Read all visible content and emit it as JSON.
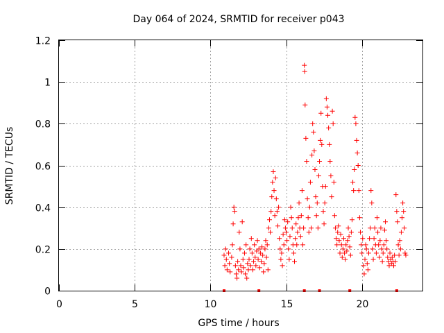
{
  "chart_data": {
    "type": "scatter",
    "title": "Day 064 of 2024, SRMTID for receiver p043",
    "xlabel": "GPS time / hours",
    "ylabel": "SRMTID / TECUs",
    "xlim": [
      0,
      24
    ],
    "ylim": [
      0,
      1.2
    ],
    "xticks": [
      0,
      5,
      10,
      15,
      20
    ],
    "xtick_labels": [
      "0",
      "5",
      "10",
      "15",
      "20"
    ],
    "yticks": [
      0,
      0.2,
      0.4,
      0.6,
      0.8,
      1,
      1.2
    ],
    "ytick_labels": [
      "0",
      "0.2",
      "0.4",
      "0.6",
      "0.8",
      "1",
      "1.2"
    ],
    "grid": true,
    "marker": "+",
    "color": "#ff0000",
    "baseline_markers_x": [
      10.9,
      13.2,
      16.2,
      17.2,
      19.2,
      22.3
    ],
    "series": [
      {
        "name": "SRMTID",
        "points": [
          [
            10.9,
            0.17
          ],
          [
            10.95,
            0.12
          ],
          [
            11.0,
            0.2
          ],
          [
            11.05,
            0.15
          ],
          [
            11.1,
            0.1
          ],
          [
            11.2,
            0.18
          ],
          [
            11.25,
            0.13
          ],
          [
            11.3,
            0.09
          ],
          [
            11.4,
            0.16
          ],
          [
            11.45,
            0.22
          ],
          [
            11.5,
            0.32
          ],
          [
            11.55,
            0.4
          ],
          [
            11.6,
            0.38
          ],
          [
            11.65,
            0.12
          ],
          [
            11.7,
            0.08
          ],
          [
            11.75,
            0.06
          ],
          [
            11.8,
            0.14
          ],
          [
            11.85,
            0.1
          ],
          [
            11.9,
            0.28
          ],
          [
            11.95,
            0.2
          ],
          [
            12.0,
            0.12
          ],
          [
            12.05,
            0.09
          ],
          [
            12.1,
            0.33
          ],
          [
            12.15,
            0.15
          ],
          [
            12.2,
            0.11
          ],
          [
            12.25,
            0.18
          ],
          [
            12.3,
            0.08
          ],
          [
            12.35,
            0.22
          ],
          [
            12.4,
            0.06
          ],
          [
            12.45,
            0.13
          ],
          [
            12.5,
            0.1
          ],
          [
            12.55,
            0.15
          ],
          [
            12.6,
            0.2
          ],
          [
            12.65,
            0.12
          ],
          [
            12.7,
            0.25
          ],
          [
            12.75,
            0.18
          ],
          [
            12.8,
            0.1
          ],
          [
            12.85,
            0.14
          ],
          [
            12.9,
            0.22
          ],
          [
            12.95,
            0.16
          ],
          [
            13.0,
            0.12
          ],
          [
            13.05,
            0.19
          ],
          [
            13.1,
            0.24
          ],
          [
            13.15,
            0.15
          ],
          [
            13.2,
            0.2
          ],
          [
            13.25,
            0.11
          ],
          [
            13.3,
            0.18
          ],
          [
            13.35,
            0.14
          ],
          [
            13.4,
            0.21
          ],
          [
            13.45,
            0.17
          ],
          [
            13.5,
            0.09
          ],
          [
            13.55,
            0.13
          ],
          [
            13.6,
            0.2
          ],
          [
            13.65,
            0.24
          ],
          [
            13.7,
            0.16
          ],
          [
            13.75,
            0.22
          ],
          [
            13.8,
            0.1
          ],
          [
            13.85,
            0.3
          ],
          [
            13.9,
            0.34
          ],
          [
            13.95,
            0.28
          ],
          [
            14.0,
            0.38
          ],
          [
            14.05,
            0.45
          ],
          [
            14.1,
            0.52
          ],
          [
            14.15,
            0.57
          ],
          [
            14.2,
            0.48
          ],
          [
            14.25,
            0.36
          ],
          [
            14.3,
            0.54
          ],
          [
            14.35,
            0.44
          ],
          [
            14.4,
            0.38
          ],
          [
            14.45,
            0.31
          ],
          [
            14.5,
            0.4
          ],
          [
            14.55,
            0.25
          ],
          [
            14.6,
            0.2
          ],
          [
            14.65,
            0.15
          ],
          [
            14.7,
            0.18
          ],
          [
            14.75,
            0.12
          ],
          [
            14.8,
            0.27
          ],
          [
            14.85,
            0.22
          ],
          [
            14.9,
            0.34
          ],
          [
            14.95,
            0.3
          ],
          [
            15.0,
            0.28
          ],
          [
            15.05,
            0.24
          ],
          [
            15.1,
            0.33
          ],
          [
            15.15,
            0.2
          ],
          [
            15.2,
            0.15
          ],
          [
            15.25,
            0.26
          ],
          [
            15.3,
            0.4
          ],
          [
            15.35,
            0.35
          ],
          [
            15.4,
            0.3
          ],
          [
            15.45,
            0.22
          ],
          [
            15.5,
            0.18
          ],
          [
            15.55,
            0.14
          ],
          [
            15.6,
            0.25
          ],
          [
            15.65,
            0.32
          ],
          [
            15.7,
            0.22
          ],
          [
            15.75,
            0.28
          ],
          [
            15.8,
            0.35
          ],
          [
            15.85,
            0.42
          ],
          [
            15.9,
            0.3
          ],
          [
            15.95,
            0.26
          ],
          [
            16.0,
            0.36
          ],
          [
            16.05,
            0.48
          ],
          [
            16.1,
            0.22
          ],
          [
            16.15,
            0.3
          ],
          [
            16.2,
            1.08
          ],
          [
            16.22,
            1.05
          ],
          [
            16.25,
            0.89
          ],
          [
            16.3,
            0.73
          ],
          [
            16.35,
            0.62
          ],
          [
            16.4,
            0.44
          ],
          [
            16.45,
            0.35
          ],
          [
            16.5,
            0.28
          ],
          [
            16.55,
            0.4
          ],
          [
            16.6,
            0.52
          ],
          [
            16.65,
            0.3
          ],
          [
            16.7,
            0.65
          ],
          [
            16.75,
            0.8
          ],
          [
            16.8,
            0.76
          ],
          [
            16.85,
            0.67
          ],
          [
            16.9,
            0.58
          ],
          [
            16.95,
            0.45
          ],
          [
            17.0,
            0.36
          ],
          [
            17.05,
            0.42
          ],
          [
            17.1,
            0.3
          ],
          [
            17.15,
            0.55
          ],
          [
            17.2,
            0.62
          ],
          [
            17.25,
            0.72
          ],
          [
            17.3,
            0.85
          ],
          [
            17.35,
            0.7
          ],
          [
            17.4,
            0.5
          ],
          [
            17.45,
            0.38
          ],
          [
            17.5,
            0.32
          ],
          [
            17.55,
            0.42
          ],
          [
            17.6,
            0.5
          ],
          [
            17.65,
            0.92
          ],
          [
            17.7,
            0.88
          ],
          [
            17.75,
            0.84
          ],
          [
            17.8,
            0.78
          ],
          [
            17.85,
            0.7
          ],
          [
            17.9,
            0.62
          ],
          [
            17.95,
            0.55
          ],
          [
            18.0,
            0.45
          ],
          [
            18.05,
            0.86
          ],
          [
            18.1,
            0.8
          ],
          [
            18.15,
            0.52
          ],
          [
            18.2,
            0.36
          ],
          [
            18.25,
            0.3
          ],
          [
            18.3,
            0.25
          ],
          [
            18.35,
            0.22
          ],
          [
            18.4,
            0.28
          ],
          [
            18.45,
            0.31
          ],
          [
            18.5,
            0.24
          ],
          [
            18.55,
            0.18
          ],
          [
            18.6,
            0.27
          ],
          [
            18.65,
            0.22
          ],
          [
            18.7,
            0.16
          ],
          [
            18.75,
            0.2
          ],
          [
            18.8,
            0.25
          ],
          [
            18.85,
            0.18
          ],
          [
            18.9,
            0.15
          ],
          [
            18.95,
            0.22
          ],
          [
            19.0,
            0.19
          ],
          [
            19.05,
            0.24
          ],
          [
            19.1,
            0.3
          ],
          [
            19.15,
            0.26
          ],
          [
            19.2,
            0.21
          ],
          [
            19.25,
            0.17
          ],
          [
            19.3,
            0.28
          ],
          [
            19.35,
            0.34
          ],
          [
            19.4,
            0.52
          ],
          [
            19.45,
            0.48
          ],
          [
            19.5,
            0.58
          ],
          [
            19.55,
            0.83
          ],
          [
            19.6,
            0.8
          ],
          [
            19.65,
            0.72
          ],
          [
            19.7,
            0.66
          ],
          [
            19.75,
            0.6
          ],
          [
            19.8,
            0.48
          ],
          [
            19.85,
            0.35
          ],
          [
            19.9,
            0.28
          ],
          [
            19.95,
            0.22
          ],
          [
            20.0,
            0.18
          ],
          [
            20.05,
            0.25
          ],
          [
            20.1,
            0.12
          ],
          [
            20.15,
            0.08
          ],
          [
            20.2,
            0.15
          ],
          [
            20.25,
            0.22
          ],
          [
            20.3,
            0.2
          ],
          [
            20.35,
            0.13
          ],
          [
            20.4,
            0.1
          ],
          [
            20.45,
            0.18
          ],
          [
            20.5,
            0.25
          ],
          [
            20.55,
            0.3
          ],
          [
            20.6,
            0.48
          ],
          [
            20.65,
            0.42
          ],
          [
            20.7,
            0.2
          ],
          [
            20.75,
            0.15
          ],
          [
            20.8,
            0.25
          ],
          [
            20.85,
            0.3
          ],
          [
            20.9,
            0.22
          ],
          [
            20.95,
            0.18
          ],
          [
            21.0,
            0.35
          ],
          [
            21.05,
            0.28
          ],
          [
            21.1,
            0.22
          ],
          [
            21.15,
            0.16
          ],
          [
            21.2,
            0.24
          ],
          [
            21.25,
            0.3
          ],
          [
            21.3,
            0.2
          ],
          [
            21.35,
            0.14
          ],
          [
            21.4,
            0.18
          ],
          [
            21.45,
            0.22
          ],
          [
            21.5,
            0.29
          ],
          [
            21.55,
            0.33
          ],
          [
            21.6,
            0.24
          ],
          [
            21.65,
            0.2
          ],
          [
            21.7,
            0.16
          ],
          [
            21.75,
            0.14
          ],
          [
            21.8,
            0.12
          ],
          [
            21.85,
            0.18
          ],
          [
            21.9,
            0.15
          ],
          [
            21.95,
            0.13
          ],
          [
            22.0,
            0.16
          ],
          [
            22.05,
            0.14
          ],
          [
            22.1,
            0.12
          ],
          [
            22.15,
            0.17
          ],
          [
            22.2,
            0.14
          ],
          [
            22.25,
            0.46
          ],
          [
            22.3,
            0.38
          ],
          [
            22.35,
            0.33
          ],
          [
            22.4,
            0.22
          ],
          [
            22.45,
            0.17
          ],
          [
            22.5,
            0.24
          ],
          [
            22.55,
            0.2
          ],
          [
            22.6,
            0.28
          ],
          [
            22.65,
            0.35
          ],
          [
            22.7,
            0.42
          ],
          [
            22.75,
            0.38
          ],
          [
            22.8,
            0.3
          ],
          [
            22.85,
            0.18
          ],
          [
            22.9,
            0.17
          ]
        ]
      }
    ]
  }
}
